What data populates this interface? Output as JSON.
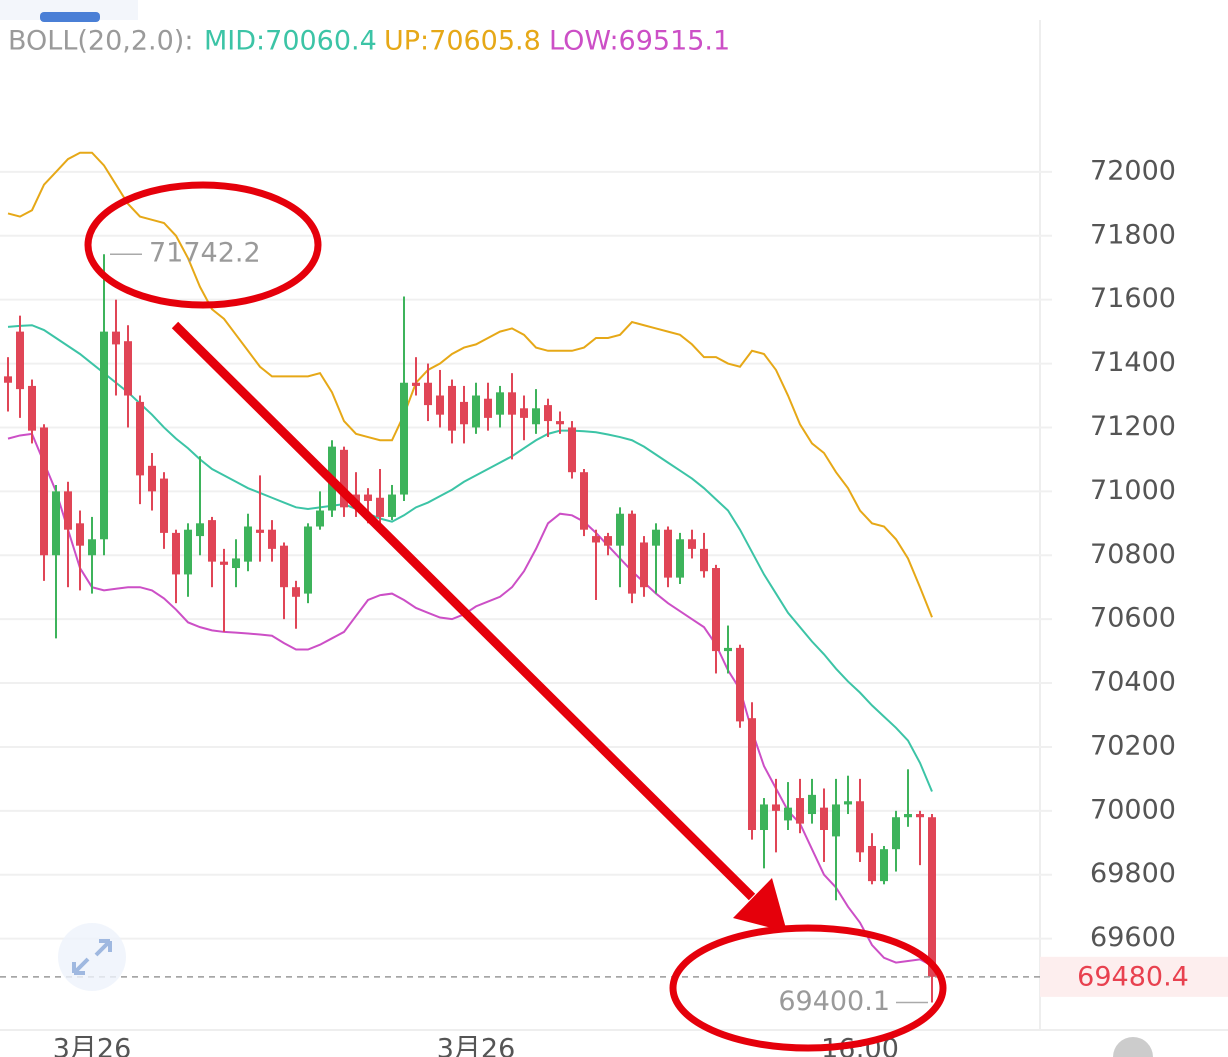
{
  "chart_data": {
    "type": "candlestick",
    "indicator": "BOLL(20,2.0):",
    "categories": [
      null,
      null,
      null,
      null,
      null,
      null,
      null,
      "3月26",
      null,
      null,
      null,
      null,
      null,
      null,
      null,
      null,
      null,
      null,
      null,
      null,
      null,
      null,
      null,
      null,
      null,
      null,
      null,
      null,
      null,
      null,
      null,
      null,
      null,
      null,
      null,
      null,
      null,
      null,
      null,
      "3月26",
      null,
      null,
      null,
      null,
      null,
      null,
      null,
      null,
      null,
      null,
      null,
      null,
      null,
      null,
      null,
      null,
      null,
      null,
      null,
      null,
      null,
      null,
      null,
      null,
      null,
      null,
      null,
      null,
      null,
      null,
      null,
      "16:00",
      null,
      null,
      null,
      null,
      null,
      null
    ],
    "open": [
      71360,
      71500,
      71330,
      71200,
      70800,
      71000,
      70900,
      70800,
      70850,
      71500,
      71470,
      71280,
      71080,
      71040,
      70870,
      70740,
      70860,
      70910,
      70780,
      70760,
      70780,
      70880,
      70880,
      70830,
      70700,
      70680,
      70890,
      70940,
      71130,
      70990,
      70990,
      70980,
      70920,
      70990,
      71340,
      71340,
      71300,
      71330,
      71280,
      71200,
      71290,
      71240,
      71310,
      71260,
      71210,
      71270,
      71220,
      71200,
      71060,
      70860,
      70860,
      70830,
      70930,
      70840,
      70830,
      70880,
      70730,
      70850,
      70820,
      70760,
      70500,
      70510,
      70290,
      69940,
      70020,
      69970,
      70040,
      69990,
      70010,
      69920,
      70020,
      70030,
      69890,
      69780,
      69880,
      69980,
      69990,
      69980
    ],
    "high": [
      71420,
      71550,
      71350,
      71210,
      71020,
      71030,
      70940,
      70920,
      71742.2,
      71600,
      71520,
      71300,
      71120,
      71060,
      70880,
      70900,
      71110,
      70920,
      70820,
      70850,
      70930,
      71050,
      70910,
      70840,
      70720,
      70900,
      71000,
      71160,
      71140,
      71060,
      71010,
      71070,
      71020,
      71610,
      71420,
      71400,
      71380,
      71350,
      71330,
      71340,
      71340,
      71330,
      71370,
      71300,
      71320,
      71290,
      71250,
      71220,
      71070,
      70880,
      70870,
      70950,
      70940,
      70860,
      70900,
      70890,
      70870,
      70880,
      70870,
      70770,
      70580,
      70520,
      70340,
      70040,
      70100,
      70090,
      70100,
      70100,
      70070,
      70100,
      70110,
      70100,
      69930,
      69890,
      70000,
      70130,
      70000,
      69990
    ],
    "low": [
      71250,
      71230,
      71150,
      70720,
      70540,
      70700,
      70690,
      70680,
      70800,
      71300,
      71200,
      70960,
      70940,
      70820,
      70650,
      70670,
      70800,
      70700,
      70560,
      70700,
      70750,
      70780,
      70780,
      70600,
      70570,
      70650,
      70880,
      70920,
      70920,
      70920,
      70900,
      70890,
      70910,
      70970,
      71300,
      71220,
      71200,
      71150,
      71150,
      71180,
      71190,
      71200,
      71100,
      71160,
      71180,
      71170,
      71180,
      71040,
      70860,
      70660,
      70800,
      70700,
      70650,
      70670,
      70680,
      70700,
      70710,
      70790,
      70730,
      70430,
      70430,
      70260,
      69910,
      69820,
      69870,
      69940,
      69930,
      69960,
      69840,
      69720,
      69990,
      69840,
      69770,
      69770,
      69810,
      69950,
      69830,
      69400.1
    ],
    "close": [
      71340,
      71320,
      71190,
      70800,
      71000,
      70880,
      70830,
      70850,
      71500,
      71460,
      71300,
      71050,
      71000,
      70870,
      70740,
      70880,
      70900,
      70780,
      70770,
      70790,
      70890,
      70870,
      70820,
      70700,
      70670,
      70890,
      70940,
      71140,
      70950,
      70960,
      70970,
      70920,
      70990,
      71340,
      71330,
      71270,
      71240,
      71190,
      71210,
      71300,
      71230,
      71310,
      71240,
      71230,
      71260,
      71220,
      71210,
      71060,
      70880,
      70840,
      70830,
      70930,
      70680,
      70700,
      70880,
      70730,
      70850,
      70820,
      70750,
      70500,
      70510,
      70280,
      69940,
      70020,
      70000,
      70010,
      69960,
      70050,
      69940,
      70020,
      70030,
      69870,
      69780,
      69880,
      69980,
      69990,
      69980,
      69480.4
    ],
    "up_color": "#3db35b",
    "down_color": "#e04556",
    "series": [
      {
        "name": "MID",
        "legend_label": "MID:70060.4",
        "color": "#3cc4a6",
        "values": [
          71515,
          71518,
          71520,
          71505,
          71480,
          71455,
          71430,
          71400,
          71370,
          71340,
          71310,
          71275,
          71240,
          71200,
          71165,
          71135,
          71100,
          71070,
          71050,
          71030,
          71010,
          70995,
          70980,
          70965,
          70950,
          70945,
          70950,
          70955,
          70960,
          70945,
          70930,
          70915,
          70905,
          70925,
          70950,
          70965,
          70985,
          71005,
          71030,
          71050,
          71070,
          71090,
          71110,
          71135,
          71160,
          71180,
          71190,
          71190,
          71188,
          71185,
          71178,
          71170,
          71160,
          71140,
          71115,
          71090,
          71065,
          71040,
          71010,
          70975,
          70940,
          70880,
          70810,
          70740,
          70680,
          70620,
          70575,
          70530,
          70490,
          70445,
          70405,
          70370,
          70330,
          70295,
          70260,
          70220,
          70150,
          70060.4
        ]
      },
      {
        "name": "UP",
        "legend_label": "UP:70605.8",
        "color": "#e6a817",
        "values": [
          71870,
          71860,
          71880,
          71960,
          72000,
          72040,
          72060,
          72060,
          72020,
          71960,
          71900,
          71860,
          71850,
          71840,
          71800,
          71730,
          71640,
          71570,
          71540,
          71490,
          71440,
          71390,
          71360,
          71360,
          71360,
          71360,
          71370,
          71310,
          71220,
          71180,
          71170,
          71160,
          71160,
          71240,
          71340,
          71380,
          71400,
          71430,
          71450,
          71460,
          71480,
          71500,
          71510,
          71490,
          71450,
          71440,
          71440,
          71440,
          71450,
          71480,
          71480,
          71490,
          71530,
          71520,
          71510,
          71500,
          71490,
          71460,
          71420,
          71420,
          71400,
          71390,
          71440,
          71430,
          71380,
          71300,
          71210,
          71150,
          71120,
          71060,
          71010,
          70940,
          70900,
          70890,
          70850,
          70790,
          70700,
          70605.8
        ]
      },
      {
        "name": "LOW",
        "legend_label": "LOW:69515.1",
        "color": "#cc4fc6",
        "values": [
          71165,
          71175,
          71180,
          71090,
          71000,
          70880,
          70760,
          70700,
          70690,
          70695,
          70700,
          70700,
          70690,
          70665,
          70630,
          70590,
          70575,
          70565,
          70560,
          70558,
          70555,
          70552,
          70548,
          70525,
          70505,
          70505,
          70520,
          70540,
          70560,
          70610,
          70660,
          70675,
          70680,
          70660,
          70635,
          70620,
          70605,
          70600,
          70615,
          70640,
          70655,
          70670,
          70700,
          70750,
          70820,
          70900,
          70930,
          70925,
          70905,
          70870,
          70830,
          70790,
          70750,
          70715,
          70680,
          70650,
          70625,
          70600,
          70575,
          70520,
          70440,
          70380,
          70250,
          70140,
          70070,
          70000,
          69960,
          69880,
          69800,
          69760,
          69700,
          69650,
          69580,
          69540,
          69525,
          69530,
          69535,
          69515.1
        ]
      }
    ],
    "ylim": [
      69314,
      72538
    ],
    "yticks": [
      69600,
      69800,
      70000,
      70200,
      70400,
      70600,
      70800,
      71000,
      71200,
      71400,
      71600,
      71800,
      72000
    ],
    "grid": true,
    "high_label": 71742.2,
    "low_label": 69400.1,
    "last_price": 69480.4
  }
}
